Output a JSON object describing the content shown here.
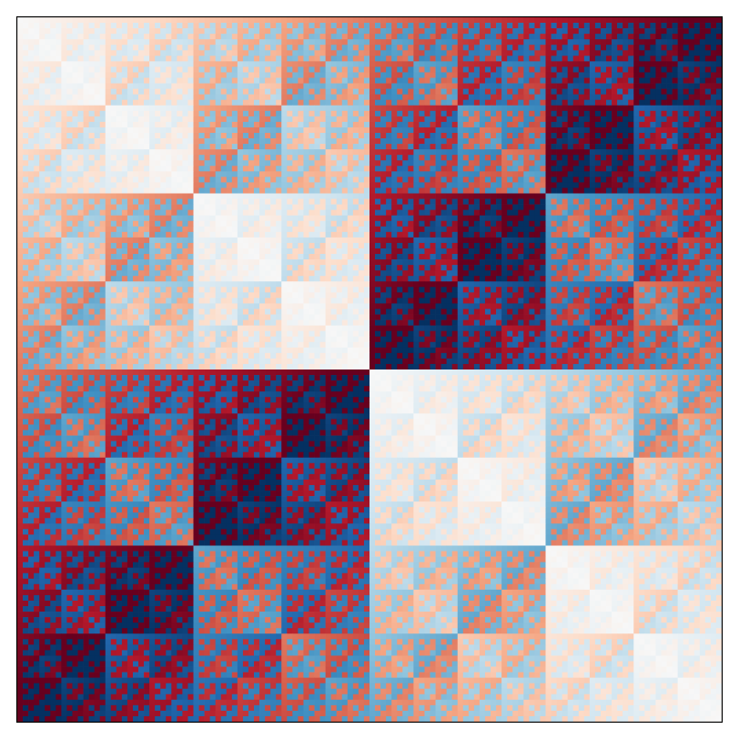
{
  "chart_data": {
    "type": "heatmap",
    "title": "",
    "xlabel": "",
    "ylabel": "",
    "grid": false,
    "legend": "none",
    "rows": 128,
    "cols": 128,
    "colormap": "RdBu_r",
    "colormap_stops": [
      "#053061",
      "#2166ac",
      "#4393c3",
      "#92c5de",
      "#d1e5f0",
      "#f7f7f7",
      "#fddbc7",
      "#f4a582",
      "#d6604d",
      "#b2182b",
      "#67001f"
    ],
    "frame_color": "#000000",
    "value_rule": "walsh_hadamard_sign_pattern",
    "note_visible_pattern": "nested_block_self_similar"
  }
}
